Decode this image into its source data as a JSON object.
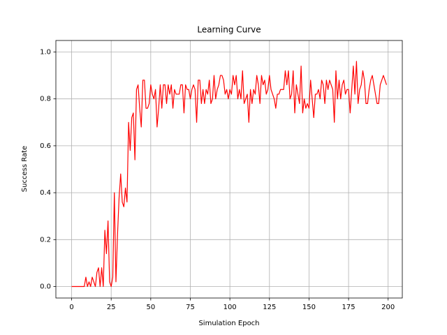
{
  "chart_data": {
    "type": "line",
    "title": "Learning Curve",
    "x_label": "Simulation Epoch",
    "y_label": "Success Rate",
    "x": [
      0,
      1,
      2,
      3,
      4,
      5,
      6,
      7,
      8,
      9,
      10,
      11,
      12,
      13,
      14,
      15,
      16,
      17,
      18,
      19,
      20,
      21,
      22,
      23,
      24,
      25,
      26,
      27,
      28,
      29,
      30,
      31,
      32,
      33,
      34,
      35,
      36,
      37,
      38,
      39,
      40,
      41,
      42,
      43,
      44,
      45,
      46,
      47,
      48,
      49,
      50,
      51,
      52,
      53,
      54,
      55,
      56,
      57,
      58,
      59,
      60,
      61,
      62,
      63,
      64,
      65,
      66,
      67,
      68,
      69,
      70,
      71,
      72,
      73,
      74,
      75,
      76,
      77,
      78,
      79,
      80,
      81,
      82,
      83,
      84,
      85,
      86,
      87,
      88,
      89,
      90,
      91,
      92,
      93,
      94,
      95,
      96,
      97,
      98,
      99,
      100,
      101,
      102,
      103,
      104,
      105,
      106,
      107,
      108,
      109,
      110,
      111,
      112,
      113,
      114,
      115,
      116,
      117,
      118,
      119,
      120,
      121,
      122,
      123,
      124,
      125,
      126,
      127,
      128,
      129,
      130,
      131,
      132,
      133,
      134,
      135,
      136,
      137,
      138,
      139,
      140,
      141,
      142,
      143,
      144,
      145,
      146,
      147,
      148,
      149,
      150,
      151,
      152,
      153,
      154,
      155,
      156,
      157,
      158,
      159,
      160,
      161,
      162,
      163,
      164,
      165,
      166,
      167,
      168,
      169,
      170,
      171,
      172,
      173,
      174,
      175,
      176,
      177,
      178,
      179,
      180,
      181,
      182,
      183,
      184,
      185,
      186,
      187,
      188,
      189,
      190,
      191,
      192,
      193,
      194,
      195,
      196,
      197,
      198,
      199
    ],
    "series": [
      {
        "color": "#ff0000",
        "values": [
          0,
          0,
          0,
          0,
          0,
          0,
          0,
          0,
          0,
          0.04,
          0,
          0.02,
          0,
          0.04,
          0.02,
          0,
          0.06,
          0.08,
          0,
          0.08,
          0,
          0.24,
          0.14,
          0.28,
          0.02,
          0,
          0.04,
          0.4,
          0.02,
          0.22,
          0.38,
          0.48,
          0.36,
          0.34,
          0.42,
          0.36,
          0.7,
          0.58,
          0.72,
          0.74,
          0.54,
          0.84,
          0.86,
          0.76,
          0.68,
          0.88,
          0.88,
          0.76,
          0.76,
          0.78,
          0.86,
          0.82,
          0.8,
          0.84,
          0.68,
          0.76,
          0.86,
          0.76,
          0.86,
          0.86,
          0.78,
          0.86,
          0.82,
          0.86,
          0.76,
          0.84,
          0.82,
          0.82,
          0.82,
          0.86,
          0.86,
          0.74,
          0.86,
          0.84,
          0.84,
          0.8,
          0.84,
          0.86,
          0.84,
          0.7,
          0.88,
          0.88,
          0.78,
          0.84,
          0.78,
          0.84,
          0.82,
          0.88,
          0.78,
          0.8,
          0.9,
          0.8,
          0.84,
          0.86,
          0.9,
          0.9,
          0.88,
          0.82,
          0.84,
          0.8,
          0.84,
          0.82,
          0.9,
          0.86,
          0.9,
          0.8,
          0.84,
          0.8,
          0.92,
          0.78,
          0.8,
          0.82,
          0.7,
          0.84,
          0.78,
          0.84,
          0.82,
          0.9,
          0.86,
          0.78,
          0.9,
          0.86,
          0.88,
          0.82,
          0.84,
          0.9,
          0.84,
          0.82,
          0.8,
          0.76,
          0.82,
          0.82,
          0.84,
          0.84,
          0.84,
          0.92,
          0.86,
          0.92,
          0.8,
          0.82,
          0.92,
          0.74,
          0.86,
          0.82,
          0.78,
          0.94,
          0.74,
          0.8,
          0.76,
          0.78,
          0.76,
          0.88,
          0.8,
          0.72,
          0.82,
          0.82,
          0.84,
          0.8,
          0.88,
          0.86,
          0.78,
          0.88,
          0.84,
          0.88,
          0.86,
          0.84,
          0.7,
          0.92,
          0.8,
          0.88,
          0.8,
          0.86,
          0.88,
          0.82,
          0.84,
          0.84,
          0.74,
          0.84,
          0.94,
          0.82,
          0.96,
          0.78,
          0.84,
          0.86,
          0.92,
          0.88,
          0.78,
          0.78,
          0.84,
          0.88,
          0.9,
          0.86,
          0.82,
          0.78,
          0.78,
          0.86,
          0.88,
          0.9,
          0.88,
          0.86
        ]
      }
    ],
    "xlim": [
      -9.95,
      208.95
    ],
    "ylim": [
      -0.049,
      1.049
    ],
    "xticks": [
      0,
      25,
      50,
      75,
      100,
      125,
      150,
      175,
      200
    ],
    "yticks": [
      {
        "value": 0,
        "label": "0.0"
      },
      0.2,
      0.4,
      0.6,
      0.8,
      {
        "value": 1,
        "label": "1.0"
      }
    ],
    "grid": true
  }
}
